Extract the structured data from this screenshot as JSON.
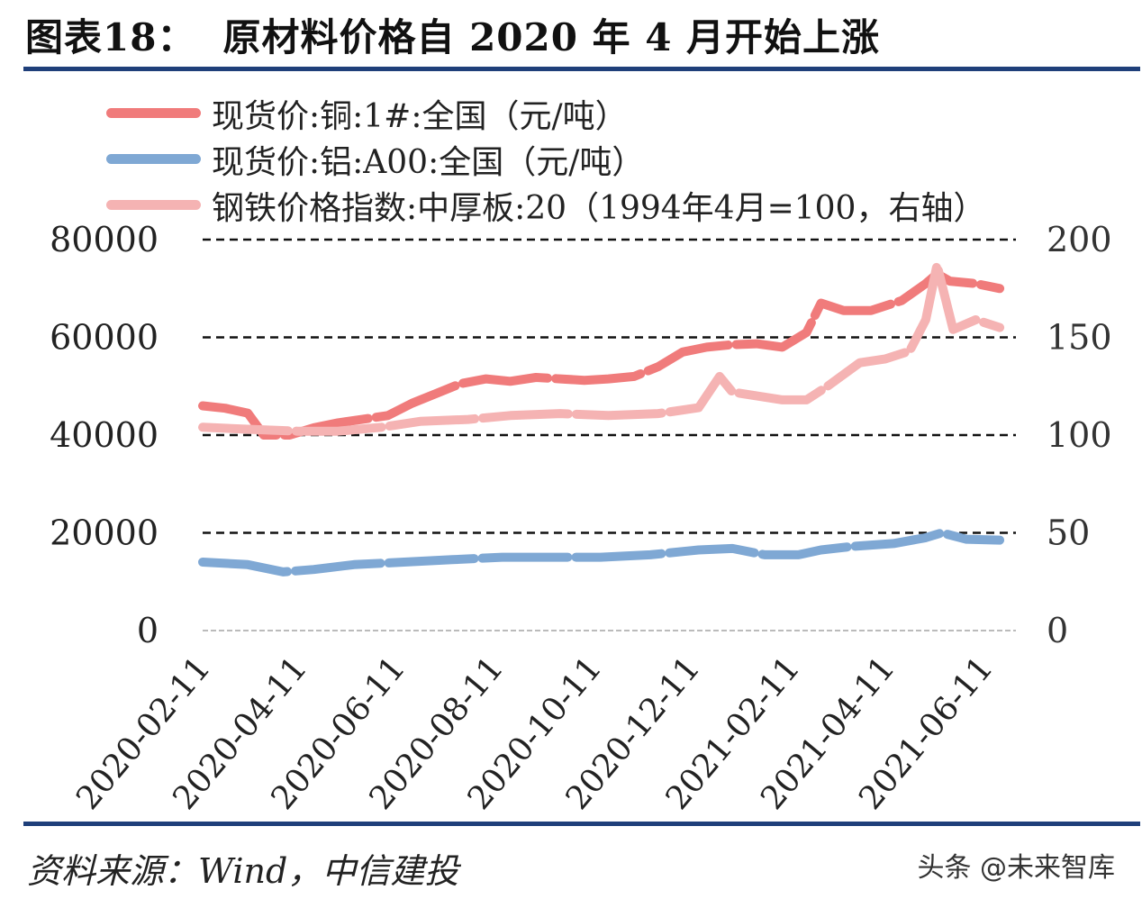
{
  "figure": {
    "number": "图表18：",
    "title": "原材料价格自 2020 年 4 月开始上涨",
    "source": "资料来源：Wind，中信建投",
    "watermark": "头条 @未来智库"
  },
  "chart_data": {
    "type": "line",
    "x_type": "date",
    "x_ticks": [
      "2020-02-11",
      "2020-04-11",
      "2020-06-11",
      "2020-08-11",
      "2020-10-11",
      "2020-12-11",
      "2021-02-11",
      "2021-04-11",
      "2021-06-11"
    ],
    "x_range": [
      "2020-02-11",
      "2021-06-30"
    ],
    "y_left": {
      "range": [
        0,
        80000
      ],
      "ticks": [
        "0",
        "20000",
        "40000",
        "60000",
        "80000"
      ]
    },
    "y_right": {
      "range": [
        0,
        200
      ],
      "ticks": [
        "0",
        "50",
        "100",
        "150",
        "200"
      ]
    },
    "grid": "dashed horizontal",
    "legend_position": "top-left",
    "series": [
      {
        "name": "现货价:铜:1#:全国（元/吨）",
        "axis": "left",
        "color": "#f07b7b",
        "points": [
          [
            "2020-02-11",
            46000
          ],
          [
            "2020-02-25",
            45500
          ],
          [
            "2020-03-10",
            44500
          ],
          [
            "2020-03-20",
            40000
          ],
          [
            "2020-04-05",
            40000
          ],
          [
            "2020-04-20",
            41500
          ],
          [
            "2020-05-05",
            42500
          ],
          [
            "2020-05-20",
            43200
          ],
          [
            "2020-06-05",
            44000
          ],
          [
            "2020-06-20",
            46500
          ],
          [
            "2020-07-05",
            48500
          ],
          [
            "2020-07-20",
            50500
          ],
          [
            "2020-08-05",
            51500
          ],
          [
            "2020-08-20",
            51000
          ],
          [
            "2020-09-05",
            51800
          ],
          [
            "2020-09-20",
            51500
          ],
          [
            "2020-10-05",
            51200
          ],
          [
            "2020-10-20",
            51500
          ],
          [
            "2020-11-05",
            52000
          ],
          [
            "2020-11-20",
            54000
          ],
          [
            "2020-12-05",
            57000
          ],
          [
            "2020-12-20",
            58000
          ],
          [
            "2021-01-05",
            58500
          ],
          [
            "2021-01-20",
            58700
          ],
          [
            "2021-02-05",
            58000
          ],
          [
            "2021-02-20",
            61000
          ],
          [
            "2021-03-01",
            67000
          ],
          [
            "2021-03-15",
            65500
          ],
          [
            "2021-04-01",
            65500
          ],
          [
            "2021-04-20",
            67500
          ],
          [
            "2021-05-05",
            71000
          ],
          [
            "2021-05-12",
            73000
          ],
          [
            "2021-05-20",
            71500
          ],
          [
            "2021-06-05",
            71000
          ],
          [
            "2021-06-20",
            70000
          ]
        ]
      },
      {
        "name": "现货价:铝:A00:全国（元/吨）",
        "axis": "left",
        "color": "#7fa8d4",
        "points": [
          [
            "2020-02-11",
            14000
          ],
          [
            "2020-03-10",
            13500
          ],
          [
            "2020-04-01",
            12000
          ],
          [
            "2020-04-20",
            12500
          ],
          [
            "2020-05-15",
            13500
          ],
          [
            "2020-06-15",
            14000
          ],
          [
            "2020-07-15",
            14500
          ],
          [
            "2020-08-15",
            15000
          ],
          [
            "2020-09-15",
            15000
          ],
          [
            "2020-10-15",
            15000
          ],
          [
            "2020-11-15",
            15500
          ],
          [
            "2020-12-15",
            16500
          ],
          [
            "2021-01-05",
            16800
          ],
          [
            "2021-01-25",
            15500
          ],
          [
            "2021-02-15",
            15500
          ],
          [
            "2021-03-01",
            16500
          ],
          [
            "2021-03-20",
            17200
          ],
          [
            "2021-04-15",
            17800
          ],
          [
            "2021-05-05",
            19000
          ],
          [
            "2021-05-15",
            20000
          ],
          [
            "2021-05-30",
            18700
          ],
          [
            "2021-06-20",
            18500
          ]
        ]
      },
      {
        "name": "钢铁价格指数:中厚板:20（1994年4月=100，右轴）",
        "axis": "right",
        "color": "#f5b3b3",
        "points": [
          [
            "2020-02-11",
            104
          ],
          [
            "2020-03-10",
            103
          ],
          [
            "2020-04-10",
            102
          ],
          [
            "2020-05-05",
            102
          ],
          [
            "2020-06-01",
            104
          ],
          [
            "2020-06-25",
            107
          ],
          [
            "2020-07-25",
            108
          ],
          [
            "2020-08-20",
            110
          ],
          [
            "2020-09-20",
            111
          ],
          [
            "2020-10-20",
            110
          ],
          [
            "2020-11-20",
            111
          ],
          [
            "2020-12-15",
            114
          ],
          [
            "2020-12-28",
            130
          ],
          [
            "2021-01-05",
            122
          ],
          [
            "2021-02-05",
            118
          ],
          [
            "2021-02-20",
            118
          ],
          [
            "2021-03-05",
            125
          ],
          [
            "2021-03-25",
            137
          ],
          [
            "2021-04-10",
            139
          ],
          [
            "2021-04-25",
            143
          ],
          [
            "2021-05-05",
            159
          ],
          [
            "2021-05-12",
            187
          ],
          [
            "2021-05-22",
            154
          ],
          [
            "2021-06-05",
            159
          ],
          [
            "2021-06-20",
            155
          ]
        ]
      }
    ]
  }
}
